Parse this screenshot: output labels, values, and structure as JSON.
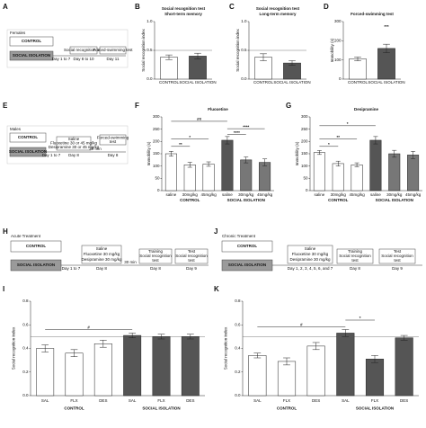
{
  "panel_labels": [
    "A",
    "B",
    "C",
    "D",
    "E",
    "F",
    "G",
    "H",
    "I",
    "J",
    "K"
  ],
  "diagrams": {
    "A": {
      "group": "Females",
      "boxes": [
        "CONTROL",
        "SOCIAL ISOLATION"
      ],
      "period": "Day 1 to 7",
      "steps": [
        {
          "text": [
            "Social recognition test"
          ],
          "day": "Day 8 to 10"
        },
        {
          "text": [
            "Forced-swimming test"
          ],
          "day": "Day 11"
        }
      ]
    },
    "E": {
      "group": "Males",
      "boxes": [
        "CONTROL",
        "SOCIAL ISOLATION"
      ],
      "period": "Day 1 to 7",
      "wait": "30 min",
      "steps": [
        {
          "text": [
            "Saline",
            "Fluoxetine 30 or 45 mg/kg",
            "Desipramine 30 or 45 mg/kg"
          ],
          "day": "Day 8"
        },
        {
          "text": [
            "Forced-swimming",
            "test"
          ],
          "day": "Day 8"
        }
      ]
    },
    "H": {
      "group": "Acute Treatment",
      "boxes": [
        "CONTROL",
        "SOCIAL ISOLATION"
      ],
      "period": "Day 1 to 7",
      "wait": "30 min",
      "steps": [
        {
          "text": [
            "Saline",
            "Fluoxetine 30 mg/kg",
            "Desipramine 30 mg/kg"
          ],
          "day": "Day 8"
        },
        {
          "text": [
            "Training",
            "Social recognition",
            "test"
          ],
          "day": "Day 8"
        },
        {
          "text": [
            "Test",
            "Social recognition",
            "test"
          ],
          "day": "Day 9"
        }
      ]
    },
    "J": {
      "group": "Chronic Treatment",
      "boxes": [
        "CONTROL",
        "SOCIAL ISOLATION"
      ],
      "period": "Day 1, 2, 3, 4, 5, 6, and 7",
      "steps": [
        {
          "text": [
            "Saline",
            "Fluoxetine 30 mg/kg",
            "Desipramine 30 mg/kg"
          ],
          "day": null
        },
        {
          "text": [
            "Training",
            "Social recognition",
            "test"
          ],
          "day": "Day 8"
        },
        {
          "text": [
            "Test",
            "Social recognition",
            "test"
          ],
          "day": "Day 9"
        }
      ]
    }
  },
  "chart_data": [
    {
      "type": "bar",
      "title": "Social recognition test",
      "subtitle": "Short-term memory",
      "ylabel": "Social recognition index",
      "categories": [
        "CONTROL",
        "SOCIAL ISOLATION"
      ],
      "values": [
        0.38,
        0.4
      ],
      "errors": [
        0.04,
        0.05
      ],
      "colors": [
        "#ffffff",
        "#555555"
      ],
      "ylim": [
        0,
        1
      ],
      "yticks": [
        {
          "value": 0,
          "label": "0.0"
        },
        0.5,
        {
          "value": 1,
          "label": "1.0"
        }
      ],
      "reference_line": 0.5,
      "annotations": []
    },
    {
      "type": "bar",
      "title": "Social recognition test",
      "subtitle": "Long-term memory",
      "ylabel": "Social recognition index",
      "categories": [
        "CONTROL",
        "SOCIAL ISOLATION"
      ],
      "values": [
        0.38,
        0.28
      ],
      "errors": [
        0.06,
        0.04
      ],
      "colors": [
        "#ffffff",
        "#555555"
      ],
      "ylim": [
        0,
        1
      ],
      "yticks": [
        {
          "value": 0,
          "label": "0.0"
        },
        0.5,
        {
          "value": 1,
          "label": "1.0"
        }
      ],
      "reference_line": 0.5,
      "annotations": []
    },
    {
      "type": "bar",
      "title": "Forced-swimming test",
      "ylabel": "Immobility (s)",
      "categories": [
        "CONTROL",
        "SOCIAL ISOLATION"
      ],
      "values": [
        105,
        160
      ],
      "errors": [
        10,
        22
      ],
      "colors": [
        "#ffffff",
        "#555555"
      ],
      "ylim": [
        0,
        300
      ],
      "yticks": [
        0,
        100,
        200,
        300
      ],
      "annotations": [
        "***"
      ]
    },
    {
      "type": "bar",
      "title": "Fluoxetine",
      "ylabel": "Immobility (s)",
      "categories": [
        "saline",
        "30mg/kg",
        "45mg/kg",
        "saline",
        "30mg/kg",
        "45mg/kg"
      ],
      "groups": [
        "CONTROL",
        "SOCIAL ISOLATION"
      ],
      "values": [
        150,
        105,
        108,
        205,
        125,
        115
      ],
      "errors": [
        10,
        10,
        9,
        15,
        12,
        14
      ],
      "colors": [
        "#ffffff",
        "#ffffff",
        "#ffffff",
        "#555555",
        "#777777",
        "#777777"
      ],
      "ylim": [
        0,
        300
      ],
      "yticks": [
        0,
        50,
        100,
        150,
        200,
        250,
        300
      ],
      "annotations": [
        "##",
        "*",
        "**",
        "****",
        "****"
      ]
    },
    {
      "type": "bar",
      "title": "Desipramine",
      "ylabel": "Immobility (s)",
      "categories": [
        "saline",
        "30mg/kg",
        "45mg/kg",
        "saline",
        "30mg/kg",
        "45mg/kg"
      ],
      "groups": [
        "CONTROL",
        "SOCIAL ISOLATION"
      ],
      "values": [
        155,
        110,
        105,
        205,
        150,
        145
      ],
      "errors": [
        8,
        10,
        8,
        15,
        14,
        15
      ],
      "colors": [
        "#ffffff",
        "#ffffff",
        "#ffffff",
        "#555555",
        "#777777",
        "#777777"
      ],
      "ylim": [
        0,
        300
      ],
      "yticks": [
        0,
        50,
        100,
        150,
        200,
        250,
        300
      ],
      "annotations": [
        "*",
        "**",
        "*"
      ]
    },
    {
      "type": "bar",
      "ylabel": "Social recognition index",
      "categories": [
        "SAL",
        "FLX",
        "DES",
        "SAL",
        "FLX",
        "DES"
      ],
      "groups": [
        "CONTROL",
        "SOCIAL ISOLATION"
      ],
      "values": [
        0.4,
        0.36,
        0.44,
        0.51,
        0.5,
        0.5
      ],
      "errors": [
        0.03,
        0.03,
        0.03,
        0.02,
        0.02,
        0.02
      ],
      "colors": [
        "#ffffff",
        "#ffffff",
        "#ffffff",
        "#555555",
        "#555555",
        "#555555"
      ],
      "ylim": [
        0,
        0.8
      ],
      "yticks": [
        {
          "value": 0,
          "label": "0.0"
        },
        0.2,
        0.4,
        0.6,
        0.8
      ],
      "reference_line": 0.5,
      "annotations": [
        "#"
      ]
    },
    {
      "type": "bar",
      "ylabel": "Social recognition index",
      "categories": [
        "SAL",
        "FLX",
        "DES",
        "SAL",
        "FLX",
        "DES"
      ],
      "groups": [
        "CONTROL",
        "SOCIAL ISOLATION"
      ],
      "values": [
        0.34,
        0.29,
        0.42,
        0.53,
        0.31,
        0.49
      ],
      "errors": [
        0.02,
        0.03,
        0.03,
        0.03,
        0.03,
        0.02
      ],
      "colors": [
        "#ffffff",
        "#ffffff",
        "#ffffff",
        "#555555",
        "#555555",
        "#555555"
      ],
      "ylim": [
        0,
        0.8
      ],
      "yticks": [
        {
          "value": 0,
          "label": "0.0"
        },
        0.2,
        0.4,
        0.6,
        0.8
      ],
      "reference_line": 0.5,
      "annotations": [
        "#",
        "*"
      ]
    }
  ]
}
